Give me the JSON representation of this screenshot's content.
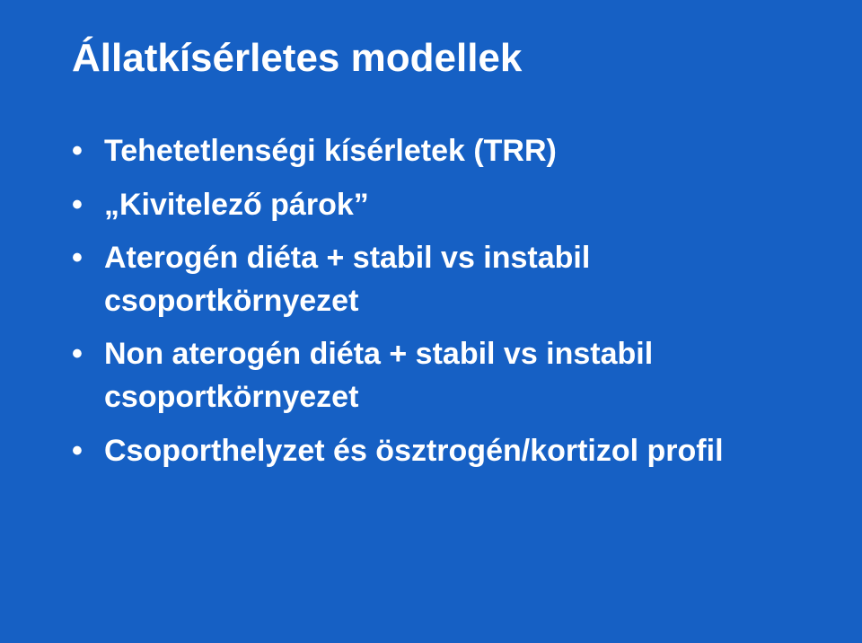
{
  "slide": {
    "background_color": "#1660c4",
    "text_color": "#ffffff",
    "title": "Állatkísérletes modellek",
    "title_fontsize": 44,
    "bullet_fontsize": 34,
    "font_family": "Arial",
    "font_weight": "bold",
    "bullets": [
      "Tehetetlenségi kísérletek (TRR)",
      "„Kivitelező párok”",
      "Aterogén diéta + stabil vs instabil csoportkörnyezet",
      "Non aterogén diéta + stabil vs instabil csoportkörnyezet",
      "Csoporthelyzet és ösztrogén/kortizol profil"
    ]
  }
}
